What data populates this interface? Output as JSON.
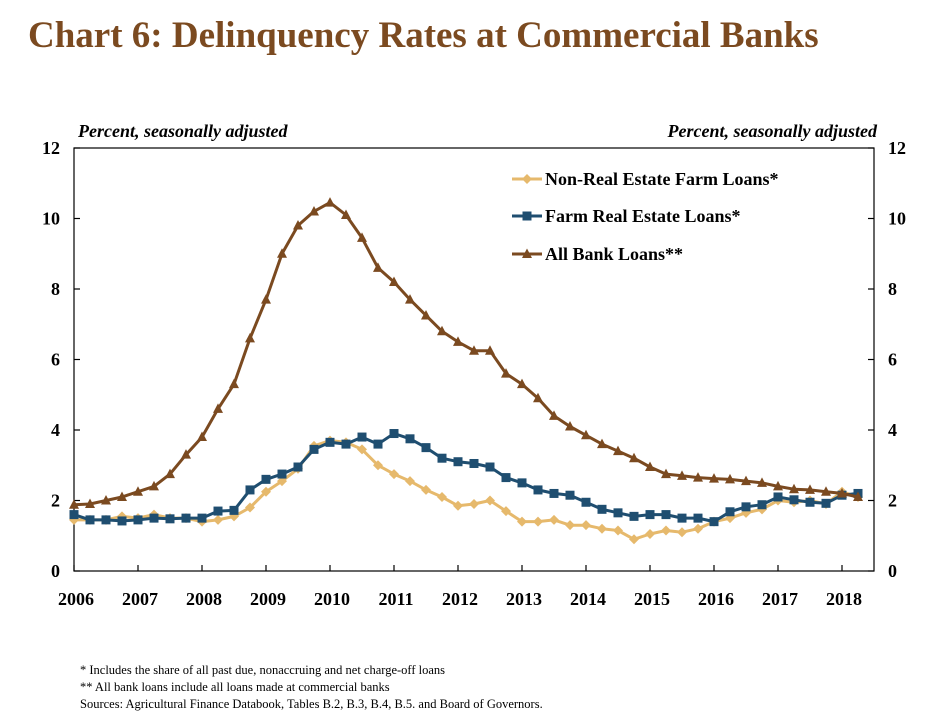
{
  "title": "Chart 6: Delinquency Rates at Commercial Banks",
  "left_unit": "Percent, seasonally adjusted",
  "right_unit": "Percent, seasonally adjusted",
  "footnotes": [
    "* Includes the share of all past due, nonaccruing and net charge-off loans",
    "** All bank loans include all loans made at commercial banks",
    "Sources: Agricultural Finance Databook, Tables B.2, B.3, B.4, B.5. and Board of Governors."
  ],
  "colors": {
    "title": "#7B4A20",
    "non_re_farm": "#E6B96C",
    "farm_re": "#1F4E70",
    "all_bank": "#7B4A20"
  },
  "chart_data": {
    "type": "line",
    "xlabel": "",
    "ylabel": "Percent, seasonally adjusted",
    "xlim": [
      2006,
      2018.5
    ],
    "ylim": [
      0,
      12
    ],
    "y_ticks": [
      0,
      2,
      4,
      6,
      8,
      10,
      12
    ],
    "x_ticks": [
      2006,
      2007,
      2008,
      2009,
      2010,
      2011,
      2012,
      2013,
      2014,
      2015,
      2016,
      2017,
      2018
    ],
    "grid": false,
    "legend_position": "top-right",
    "x": [
      2006.0,
      2006.25,
      2006.5,
      2006.75,
      2007.0,
      2007.25,
      2007.5,
      2007.75,
      2008.0,
      2008.25,
      2008.5,
      2008.75,
      2009.0,
      2009.25,
      2009.5,
      2009.75,
      2010.0,
      2010.25,
      2010.5,
      2010.75,
      2011.0,
      2011.25,
      2011.5,
      2011.75,
      2012.0,
      2012.25,
      2012.5,
      2012.75,
      2013.0,
      2013.25,
      2013.5,
      2013.75,
      2014.0,
      2014.25,
      2014.5,
      2014.75,
      2015.0,
      2015.25,
      2015.5,
      2015.75,
      2016.0,
      2016.25,
      2016.5,
      2016.75,
      2017.0,
      2017.25,
      2017.5,
      2017.75,
      2018.0,
      2018.25
    ],
    "series": [
      {
        "name": "Non-Real Estate Farm Loans*",
        "marker": "diamond",
        "color": "#E6B96C",
        "values": [
          1.45,
          1.45,
          1.45,
          1.55,
          1.5,
          1.6,
          1.5,
          1.5,
          1.4,
          1.45,
          1.55,
          1.8,
          2.25,
          2.55,
          2.9,
          3.55,
          3.7,
          3.65,
          3.45,
          3.0,
          2.75,
          2.55,
          2.3,
          2.1,
          1.85,
          1.9,
          2.0,
          1.7,
          1.4,
          1.4,
          1.45,
          1.3,
          1.3,
          1.2,
          1.15,
          0.9,
          1.05,
          1.15,
          1.1,
          1.2,
          1.4,
          1.5,
          1.65,
          1.75,
          2.0,
          1.95,
          2.0,
          1.9,
          2.25,
          2.1
        ]
      },
      {
        "name": "Farm Real Estate Loans*",
        "marker": "square",
        "color": "#1F4E70",
        "values": [
          1.6,
          1.45,
          1.45,
          1.42,
          1.45,
          1.5,
          1.48,
          1.5,
          1.5,
          1.7,
          1.72,
          2.3,
          2.6,
          2.75,
          2.95,
          3.45,
          3.65,
          3.6,
          3.8,
          3.6,
          3.9,
          3.75,
          3.5,
          3.2,
          3.1,
          3.05,
          2.95,
          2.65,
          2.5,
          2.3,
          2.2,
          2.15,
          1.95,
          1.75,
          1.65,
          1.55,
          1.6,
          1.6,
          1.5,
          1.5,
          1.4,
          1.68,
          1.82,
          1.88,
          2.1,
          2.02,
          1.95,
          1.92,
          2.15,
          2.2
        ]
      },
      {
        "name": "All Bank Loans**",
        "marker": "triangle",
        "color": "#7B4A20",
        "values": [
          1.88,
          1.9,
          2.0,
          2.1,
          2.25,
          2.4,
          2.75,
          3.3,
          3.8,
          4.6,
          5.3,
          6.6,
          7.7,
          9.0,
          9.8,
          10.2,
          10.45,
          10.1,
          9.45,
          8.6,
          8.2,
          7.7,
          7.25,
          6.8,
          6.5,
          6.25,
          6.25,
          5.6,
          5.3,
          4.9,
          4.4,
          4.1,
          3.85,
          3.6,
          3.4,
          3.2,
          2.95,
          2.75,
          2.7,
          2.65,
          2.62,
          2.6,
          2.55,
          2.5,
          2.4,
          2.32,
          2.3,
          2.25,
          2.2,
          2.1
        ]
      }
    ]
  }
}
